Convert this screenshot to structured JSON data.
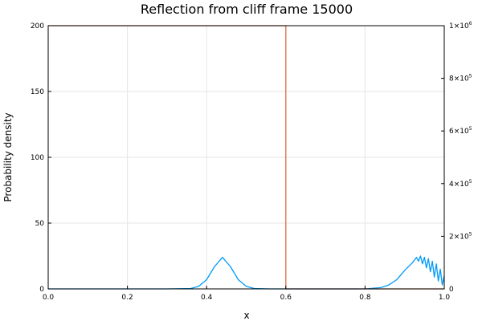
{
  "chart_data": {
    "type": "line",
    "title": "Reflection from cliff frame 15000",
    "xlabel": "x",
    "ylabel": "Probability density",
    "xlim": [
      0,
      1
    ],
    "ylim": [
      0,
      200
    ],
    "y2lim": [
      0,
      1000000
    ],
    "grid": true,
    "legend": "none",
    "x_ticks": [
      "0.0",
      "0.2",
      "0.4",
      "0.6",
      "0.8",
      "1.0"
    ],
    "y_ticks": [
      "0",
      "50",
      "100",
      "150",
      "200"
    ],
    "y2_ticks": [
      {
        "base": "0",
        "exp": ""
      },
      {
        "base": "2×10",
        "exp": "5"
      },
      {
        "base": "4×10",
        "exp": "5"
      },
      {
        "base": "6×10",
        "exp": "5"
      },
      {
        "base": "8×10",
        "exp": "5"
      },
      {
        "base": "1×10",
        "exp": "6"
      }
    ],
    "series": [
      {
        "axis": "left",
        "color": "#009af9",
        "x": [
          0.0,
          0.3,
          0.36,
          0.38,
          0.4,
          0.42,
          0.44,
          0.46,
          0.48,
          0.5,
          0.52,
          0.56,
          0.8,
          0.84,
          0.86,
          0.88,
          0.9,
          0.92,
          0.93,
          0.935,
          0.94,
          0.945,
          0.95,
          0.955,
          0.96,
          0.965,
          0.97,
          0.975,
          0.98,
          0.985,
          0.99,
          0.995,
          1.0
        ],
        "y": [
          0,
          0,
          0.3,
          2,
          7,
          17,
          24,
          17,
          7,
          2,
          0.3,
          0,
          0,
          1,
          3,
          7,
          14,
          20,
          24,
          21,
          25,
          19,
          24,
          16,
          23,
          13,
          21,
          9,
          19,
          6,
          15,
          3,
          10
        ]
      },
      {
        "axis": "right",
        "color": "#e26f46",
        "x": [
          0.0,
          0.6,
          0.6,
          1.0
        ],
        "y": [
          1000000,
          1000000,
          0,
          0
        ]
      }
    ]
  }
}
